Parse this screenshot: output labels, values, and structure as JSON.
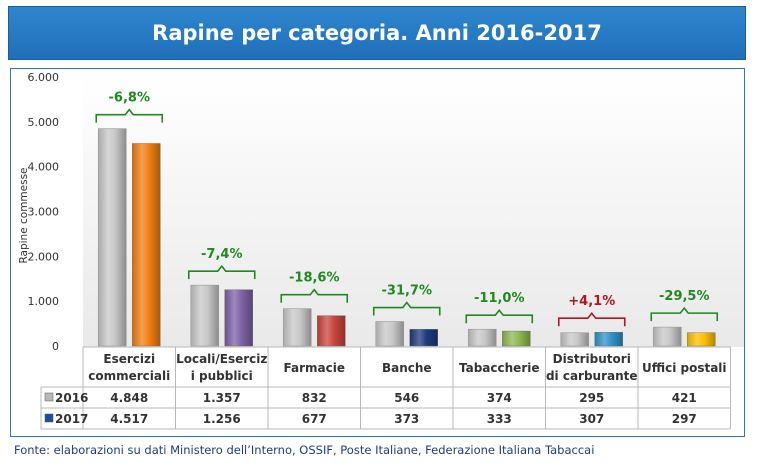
{
  "chart_data": {
    "type": "bar",
    "title": "Rapine per categoria. Anni 2016-2017",
    "ylabel": "Rapine commesse",
    "ylim": [
      0,
      6000
    ],
    "yticks": [
      "0",
      "1.000",
      "2.000",
      "3.000",
      "4.000",
      "5.000",
      "6.000"
    ],
    "categories": [
      "Esercizi commerciali",
      "Locali/Esercizi pubblici",
      "Farmacie",
      "Banche",
      "Tabaccherie",
      "Distributori di carburante",
      "Uffici postali"
    ],
    "category_labels": [
      [
        "Esercizi",
        "commerciali"
      ],
      [
        "Locali/Eserciz",
        "i pubblici"
      ],
      [
        "Farmacie"
      ],
      [
        "Banche"
      ],
      [
        "Tabaccherie"
      ],
      [
        "Distributori",
        "di carburante"
      ],
      [
        "Uffici postali"
      ]
    ],
    "series": [
      {
        "name": "2016",
        "values": [
          4848,
          1357,
          832,
          546,
          374,
          295,
          421
        ],
        "display": [
          "4.848",
          "1.357",
          "832",
          "546",
          "374",
          "295",
          "421"
        ],
        "color": "#c8c8c8"
      },
      {
        "name": "2017",
        "values": [
          4517,
          1256,
          677,
          373,
          333,
          307,
          297
        ],
        "display": [
          "4.517",
          "1.256",
          "677",
          "373",
          "333",
          "307",
          "297"
        ],
        "colors": [
          "#f07f12",
          "#7e62a6",
          "#c9463d",
          "#1f3a7d",
          "#8fb94e",
          "#2f93c8",
          "#ffc000"
        ]
      }
    ],
    "changes": [
      "-6,8%",
      "-7,4%",
      "-18,6%",
      "-31,7%",
      "-11,0%",
      "+4,1%",
      "-29,5%"
    ],
    "change_colors": [
      "#1e8a1e",
      "#1e8a1e",
      "#1e8a1e",
      "#1e8a1e",
      "#1e8a1e",
      "#b0171f",
      "#1e8a1e"
    ],
    "legend_placement": "data-table",
    "grid": false
  },
  "source": "Fonte: elaborazioni su dati Ministero dell’Interno, OSSIF, Poste Italiane, Federazione Italiana Tabaccai"
}
